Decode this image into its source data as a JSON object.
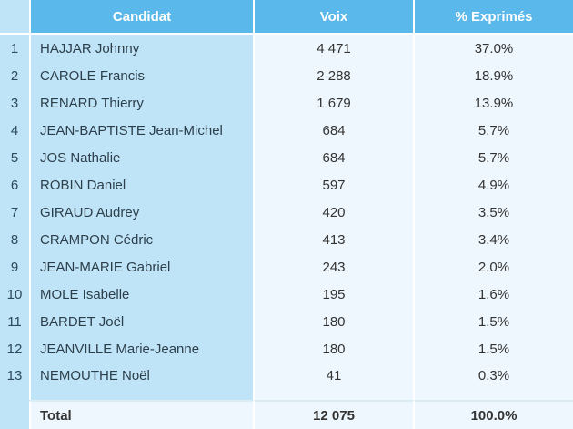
{
  "table": {
    "headers": {
      "candidate": "Candidat",
      "votes": "Voix",
      "percent": "% Exprimés"
    },
    "rows": [
      {
        "rank": "1",
        "name": "HAJJAR Johnny",
        "votes": "4 471",
        "percent": "37.0%"
      },
      {
        "rank": "2",
        "name": "CAROLE Francis",
        "votes": "2 288",
        "percent": "18.9%"
      },
      {
        "rank": "3",
        "name": "RENARD Thierry",
        "votes": "1 679",
        "percent": "13.9%"
      },
      {
        "rank": "4",
        "name": "JEAN-BAPTISTE Jean-Michel",
        "votes": "684",
        "percent": "5.7%"
      },
      {
        "rank": "5",
        "name": "JOS Nathalie",
        "votes": "684",
        "percent": "5.7%"
      },
      {
        "rank": "6",
        "name": "ROBIN Daniel",
        "votes": "597",
        "percent": "4.9%"
      },
      {
        "rank": "7",
        "name": "GIRAUD Audrey",
        "votes": "420",
        "percent": "3.5%"
      },
      {
        "rank": "8",
        "name": "CRAMPON Cédric",
        "votes": "413",
        "percent": "3.4%"
      },
      {
        "rank": "9",
        "name": "JEAN-MARIE Gabriel",
        "votes": "243",
        "percent": "2.0%"
      },
      {
        "rank": "10",
        "name": "MOLE Isabelle",
        "votes": "195",
        "percent": "1.6%"
      },
      {
        "rank": "11",
        "name": "BARDET Joël",
        "votes": "180",
        "percent": "1.5%"
      },
      {
        "rank": "12",
        "name": "JEANVILLE Marie-Jeanne",
        "votes": "180",
        "percent": "1.5%"
      },
      {
        "rank": "13",
        "name": "NEMOUTHE Noël",
        "votes": "41",
        "percent": "0.3%"
      }
    ],
    "total": {
      "label": "Total",
      "votes": "12 075",
      "percent": "100.0%"
    }
  },
  "colors": {
    "header_bg": "#5bb8ea",
    "name_column_bg": "#bfe4f7",
    "value_cell_bg": "#eef7fd",
    "header_text": "#ffffff"
  }
}
